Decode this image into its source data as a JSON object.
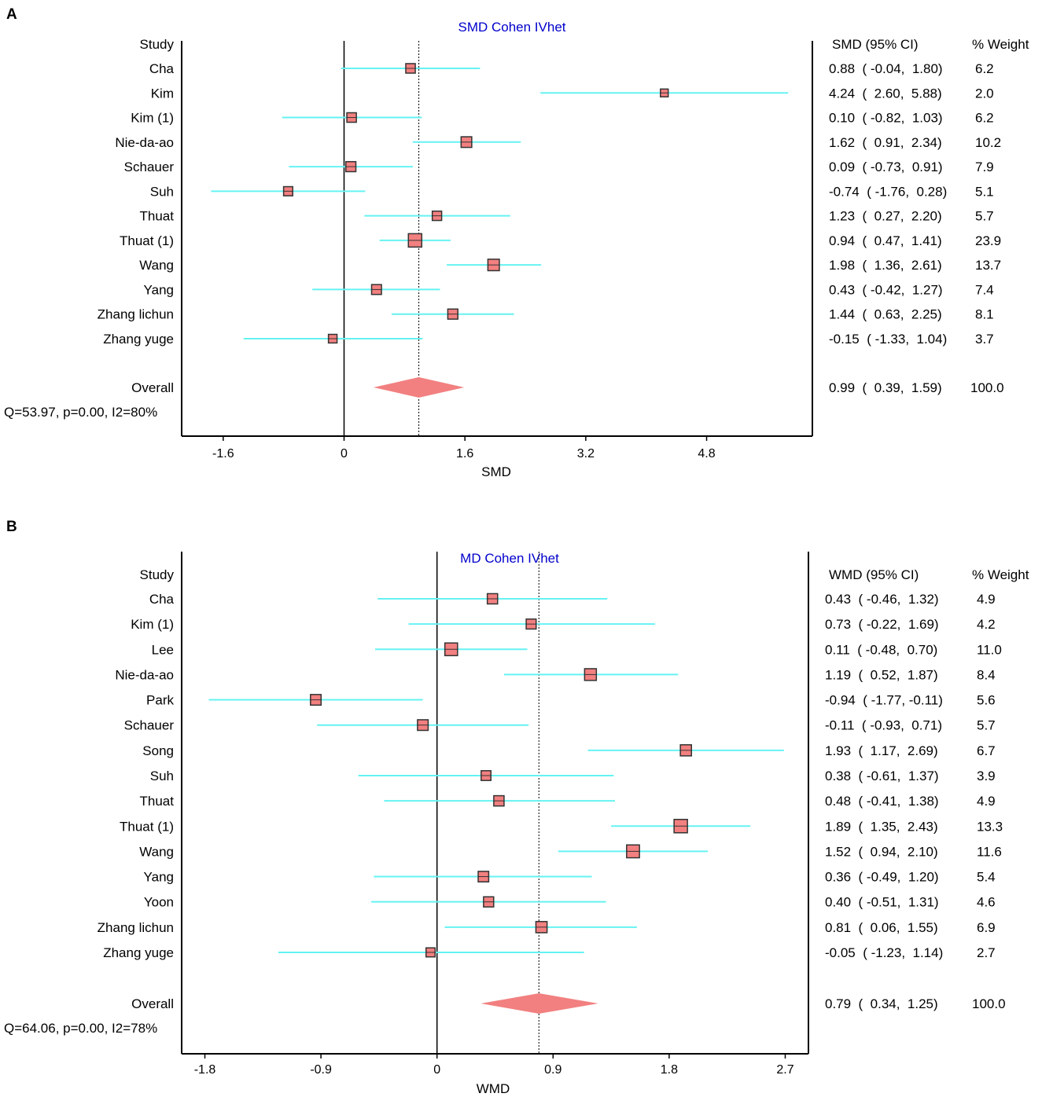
{
  "chart_data": [
    {
      "type": "forest",
      "panel": "A",
      "title": "SMD Cohen IVhet",
      "study_header": "Study",
      "effect_header": "SMD (95% CI)",
      "weight_header": "% Weight",
      "xlabel": "SMD",
      "xticks": [
        -1.6,
        0,
        1.6,
        3.2,
        4.8
      ],
      "xtick_labels": [
        "-1.6",
        "0",
        "1.6",
        "3.2",
        "4.8"
      ],
      "xlim": [
        -2.15,
        6.2
      ],
      "null_line": 0,
      "studies": [
        {
          "name": "Cha",
          "est": 0.88,
          "lo": -0.04,
          "hi": 1.8,
          "ci_text": "0.88  ( -0.04,  1.80)",
          "weight": "6.2"
        },
        {
          "name": "Kim",
          "est": 4.24,
          "lo": 2.6,
          "hi": 5.88,
          "ci_text": "4.24  (  2.60,  5.88)",
          "weight": "2.0"
        },
        {
          "name": "Kim (1)",
          "est": 0.1,
          "lo": -0.82,
          "hi": 1.03,
          "ci_text": "0.10  ( -0.82,  1.03)",
          "weight": "6.2"
        },
        {
          "name": "Nie-da-ao",
          "est": 1.62,
          "lo": 0.91,
          "hi": 2.34,
          "ci_text": "1.62  (  0.91,  2.34)",
          "weight": "10.2"
        },
        {
          "name": "Schauer",
          "est": 0.09,
          "lo": -0.73,
          "hi": 0.91,
          "ci_text": "0.09  ( -0.73,  0.91)",
          "weight": "7.9"
        },
        {
          "name": "Suh",
          "est": -0.74,
          "lo": -1.76,
          "hi": 0.28,
          "ci_text": "-0.74  ( -1.76,  0.28)",
          "weight": "5.1"
        },
        {
          "name": "Thuat",
          "est": 1.23,
          "lo": 0.27,
          "hi": 2.2,
          "ci_text": "1.23  (  0.27,  2.20)",
          "weight": "5.7"
        },
        {
          "name": "Thuat (1)",
          "est": 0.94,
          "lo": 0.47,
          "hi": 1.41,
          "ci_text": "0.94  (  0.47,  1.41)",
          "weight": "23.9"
        },
        {
          "name": "Wang",
          "est": 1.98,
          "lo": 1.36,
          "hi": 2.61,
          "ci_text": "1.98  (  1.36,  2.61)",
          "weight": "13.7"
        },
        {
          "name": "Yang",
          "est": 0.43,
          "lo": -0.42,
          "hi": 1.27,
          "ci_text": "0.43  ( -0.42,  1.27)",
          "weight": "7.4"
        },
        {
          "name": "Zhang lichun",
          "est": 1.44,
          "lo": 0.63,
          "hi": 2.25,
          "ci_text": "1.44  (  0.63,  2.25)",
          "weight": "8.1"
        },
        {
          "name": "Zhang yuge",
          "est": -0.15,
          "lo": -1.33,
          "hi": 1.04,
          "ci_text": "-0.15  ( -1.33,  1.04)",
          "weight": "3.7"
        }
      ],
      "overall": {
        "name": "Overall",
        "est": 0.99,
        "lo": 0.39,
        "hi": 1.59,
        "ci_text": "0.99  (  0.39,  1.59)",
        "weight": "100.0"
      },
      "heterogeneity": "Q=53.97, p=0.00, I2=80%"
    },
    {
      "type": "forest",
      "panel": "B",
      "title": "MD Cohen IVhet",
      "study_header": "Study",
      "effect_header": "WMD (95% CI)",
      "weight_header": "% Weight",
      "xlabel": "WMD",
      "xticks": [
        -1.8,
        -0.9,
        0,
        0.9,
        1.8,
        2.7
      ],
      "xtick_labels": [
        "-1.8",
        "-0.9",
        "0",
        "0.9",
        "1.8",
        "2.7"
      ],
      "xlim": [
        -1.98,
        2.88
      ],
      "null_line": 0,
      "studies": [
        {
          "name": "Cha",
          "est": 0.43,
          "lo": -0.46,
          "hi": 1.32,
          "ci_text": "0.43  ( -0.46,  1.32)",
          "weight": "4.9"
        },
        {
          "name": "Kim (1)",
          "est": 0.73,
          "lo": -0.22,
          "hi": 1.69,
          "ci_text": "0.73  ( -0.22,  1.69)",
          "weight": "4.2"
        },
        {
          "name": "Lee",
          "est": 0.11,
          "lo": -0.48,
          "hi": 0.7,
          "ci_text": "0.11  ( -0.48,  0.70)",
          "weight": "11.0"
        },
        {
          "name": "Nie-da-ao",
          "est": 1.19,
          "lo": 0.52,
          "hi": 1.87,
          "ci_text": "1.19  (  0.52,  1.87)",
          "weight": "8.4"
        },
        {
          "name": "Park",
          "est": -0.94,
          "lo": -1.77,
          "hi": -0.11,
          "ci_text": "-0.94  ( -1.77, -0.11)",
          "weight": "5.6"
        },
        {
          "name": "Schauer",
          "est": -0.11,
          "lo": -0.93,
          "hi": 0.71,
          "ci_text": "-0.11  ( -0.93,  0.71)",
          "weight": "5.7"
        },
        {
          "name": "Song",
          "est": 1.93,
          "lo": 1.17,
          "hi": 2.69,
          "ci_text": "1.93  (  1.17,  2.69)",
          "weight": "6.7"
        },
        {
          "name": "Suh",
          "est": 0.38,
          "lo": -0.61,
          "hi": 1.37,
          "ci_text": "0.38  ( -0.61,  1.37)",
          "weight": "3.9"
        },
        {
          "name": "Thuat",
          "est": 0.48,
          "lo": -0.41,
          "hi": 1.38,
          "ci_text": "0.48  ( -0.41,  1.38)",
          "weight": "4.9"
        },
        {
          "name": "Thuat (1)",
          "est": 1.89,
          "lo": 1.35,
          "hi": 2.43,
          "ci_text": "1.89  (  1.35,  2.43)",
          "weight": "13.3"
        },
        {
          "name": "Wang",
          "est": 1.52,
          "lo": 0.94,
          "hi": 2.1,
          "ci_text": "1.52  (  0.94,  2.10)",
          "weight": "11.6"
        },
        {
          "name": "Yang",
          "est": 0.36,
          "lo": -0.49,
          "hi": 1.2,
          "ci_text": "0.36  ( -0.49,  1.20)",
          "weight": "5.4"
        },
        {
          "name": "Yoon",
          "est": 0.4,
          "lo": -0.51,
          "hi": 1.31,
          "ci_text": "0.40  ( -0.51,  1.31)",
          "weight": "4.6"
        },
        {
          "name": "Zhang lichun",
          "est": 0.81,
          "lo": 0.06,
          "hi": 1.55,
          "ci_text": "0.81  (  0.06,  1.55)",
          "weight": "6.9"
        },
        {
          "name": "Zhang yuge",
          "est": -0.05,
          "lo": -1.23,
          "hi": 1.14,
          "ci_text": "-0.05  ( -1.23,  1.14)",
          "weight": "2.7"
        }
      ],
      "overall": {
        "name": "Overall",
        "est": 0.79,
        "lo": 0.34,
        "hi": 1.25,
        "ci_text": "0.79  (  0.34,  1.25)",
        "weight": "100.0"
      },
      "heterogeneity": "Q=64.06, p=0.00, I2=78%"
    }
  ],
  "colors": {
    "ci_line": "#66f2f2",
    "marker_fill": "#f28080",
    "marker_stroke": "#333333",
    "diamond": "#f28080",
    "axis": "#000000",
    "title": "#0000cc"
  }
}
